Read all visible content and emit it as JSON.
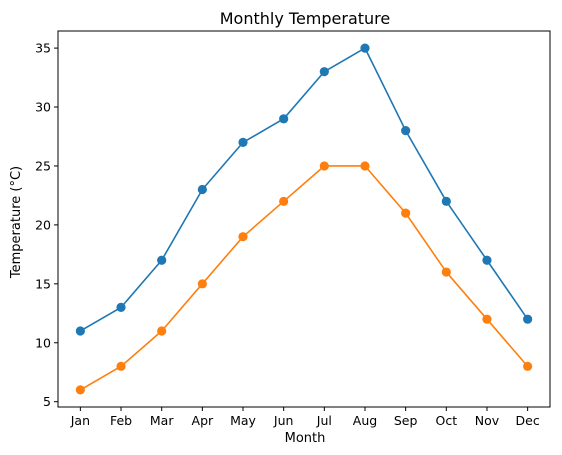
{
  "chart_data": {
    "type": "line",
    "title": "Monthly Temperature",
    "xlabel": "Month",
    "ylabel": "Temperature (°C)",
    "categories": [
      "Jan",
      "Feb",
      "Mar",
      "Apr",
      "May",
      "Jun",
      "Jul",
      "Aug",
      "Sep",
      "Oct",
      "Nov",
      "Dec"
    ],
    "ylim": [
      4.55,
      36.45
    ],
    "yticks": [
      5,
      10,
      15,
      20,
      25,
      30,
      35
    ],
    "grid": false,
    "series": [
      {
        "values": [
          11,
          13,
          17,
          23,
          27,
          29,
          33,
          35,
          28,
          22,
          17,
          12
        ],
        "color": "#1f77b4"
      },
      {
        "values": [
          6,
          8,
          11,
          15,
          19,
          22,
          25,
          25,
          21,
          16,
          12,
          8
        ],
        "color": "#ff7f0e"
      }
    ]
  }
}
